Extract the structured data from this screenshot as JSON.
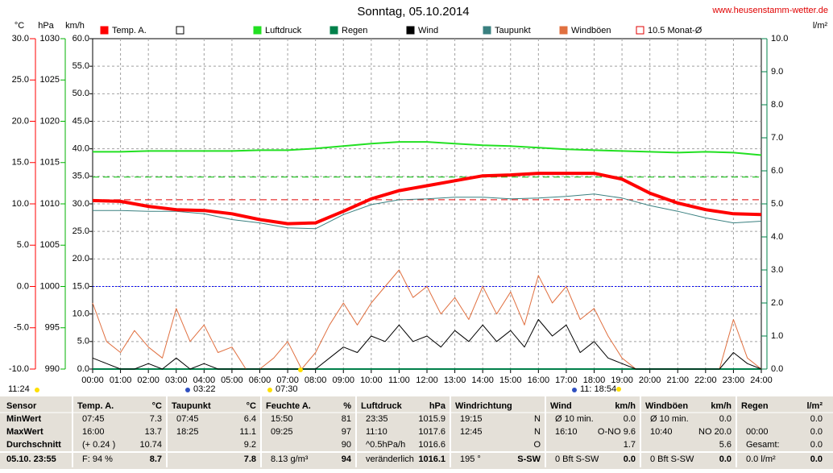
{
  "chart_data": {
    "type": "line",
    "title": "Sonntag, 05.10.2014",
    "source": "www.heusenstamm-wetter.de",
    "xlim": [
      0,
      24
    ],
    "xticks": [
      {
        "value": 0,
        "label": "00:00"
      },
      {
        "value": 1,
        "label": "01:00"
      },
      {
        "value": 2,
        "label": "02:00"
      },
      {
        "value": 3,
        "label": "03:00"
      },
      {
        "value": 4,
        "label": "04:00"
      },
      {
        "value": 5,
        "label": "05:00"
      },
      {
        "value": 6,
        "label": "06:00"
      },
      {
        "value": 7,
        "label": "07:00"
      },
      {
        "value": 8,
        "label": "08:00"
      },
      {
        "value": 9,
        "label": "09:00"
      },
      {
        "value": 10,
        "label": "10:00"
      },
      {
        "value": 11,
        "label": "11:00"
      },
      {
        "value": 12,
        "label": "12:00"
      },
      {
        "value": 13,
        "label": "13:00"
      },
      {
        "value": 14,
        "label": "14:00"
      },
      {
        "value": 15,
        "label": "15:00"
      },
      {
        "value": 16,
        "label": "16:00"
      },
      {
        "value": 17,
        "label": "17:00"
      },
      {
        "value": 18,
        "label": "18:00"
      },
      {
        "value": 19,
        "label": "19:00"
      },
      {
        "value": 20,
        "label": "20:00"
      },
      {
        "value": 21,
        "label": "21:00"
      },
      {
        "value": 22,
        "label": "22:00"
      },
      {
        "value": 23,
        "label": "23:00"
      },
      {
        "value": 24,
        "label": "24:00"
      }
    ],
    "grid": true,
    "axes": {
      "temp": {
        "label": "°C",
        "color": "#ff0000",
        "lim": [
          -10,
          30
        ],
        "ticks": [
          {
            "value": 30,
            "label": "30.0"
          },
          {
            "value": 25,
            "label": "25.0"
          },
          {
            "value": 20,
            "label": "20.0"
          },
          {
            "value": 15,
            "label": "15.0"
          },
          {
            "value": 10,
            "label": "10.0"
          },
          {
            "value": 5,
            "label": "5.0"
          },
          {
            "value": 0,
            "label": "0.0"
          },
          {
            "value": -5,
            "label": "-5.0"
          },
          {
            "value": -10,
            "label": "-10.0"
          }
        ]
      },
      "hpa": {
        "label": "hPa",
        "color": "#00b000",
        "lim": [
          990,
          1030
        ],
        "ticks": [
          1030,
          1025,
          1020,
          1015,
          1010,
          1005,
          1000,
          995,
          990
        ]
      },
      "kmh": {
        "label": "km/h",
        "color": "#000000",
        "lim": [
          0,
          60
        ],
        "ticks": [
          {
            "value": 60,
            "label": "60.0"
          },
          {
            "value": 55,
            "label": "55.0"
          },
          {
            "value": 50,
            "label": "50.0"
          },
          {
            "value": 45,
            "label": "45.0"
          },
          {
            "value": 40,
            "label": "40.0"
          },
          {
            "value": 35,
            "label": "35.0"
          },
          {
            "value": 30,
            "label": "30.0"
          },
          {
            "value": 25,
            "label": "25.0"
          },
          {
            "value": 20,
            "label": "20.0"
          },
          {
            "value": 15,
            "label": "15.0"
          },
          {
            "value": 10,
            "label": "10.0"
          },
          {
            "value": 5,
            "label": "5.0"
          },
          {
            "value": 0,
            "label": "0.0"
          }
        ]
      },
      "rain": {
        "label": "l/m²",
        "color": "#00804a",
        "lim": [
          0,
          10
        ],
        "ticks": [
          {
            "value": 10,
            "label": "10.0"
          },
          {
            "value": 9,
            "label": "9.0"
          },
          {
            "value": 8,
            "label": "8.0"
          },
          {
            "value": 7,
            "label": "7.0"
          },
          {
            "value": 6,
            "label": "6.0"
          },
          {
            "value": 5,
            "label": "5.0"
          },
          {
            "value": 4,
            "label": "4.0"
          },
          {
            "value": 3,
            "label": "3.0"
          },
          {
            "value": 2,
            "label": "2.0"
          },
          {
            "value": 1,
            "label": "1.0"
          },
          {
            "value": 0,
            "label": "0.0"
          }
        ]
      }
    },
    "x": [
      0,
      1,
      2,
      3,
      4,
      5,
      6,
      7,
      8,
      9,
      10,
      11,
      12,
      13,
      14,
      15,
      16,
      17,
      18,
      19,
      20,
      21,
      22,
      23,
      24
    ],
    "series": [
      {
        "name": "Temp. A.",
        "color": "#ff0000",
        "axis": "temp",
        "width": 4,
        "values": [
          10.4,
          10.3,
          9.7,
          9.3,
          9.2,
          8.8,
          8.1,
          7.6,
          7.7,
          9.1,
          10.6,
          11.6,
          12.2,
          12.8,
          13.4,
          13.5,
          13.7,
          13.7,
          13.7,
          13.0,
          11.3,
          10.1,
          9.3,
          8.8,
          8.7
        ]
      },
      {
        "name": "Luftdruck",
        "color": "#22e022",
        "axis": "hpa",
        "width": 2,
        "values": [
          1016.3,
          1016.3,
          1016.4,
          1016.4,
          1016.4,
          1016.4,
          1016.5,
          1016.5,
          1016.7,
          1017.0,
          1017.3,
          1017.5,
          1017.5,
          1017.3,
          1017.1,
          1017.0,
          1016.8,
          1016.6,
          1016.5,
          1016.4,
          1016.3,
          1016.2,
          1016.3,
          1016.2,
          1015.9
        ]
      },
      {
        "name": "Regen",
        "color": "#00804a",
        "axis": "rain",
        "width": 2,
        "values": [
          0,
          0,
          0,
          0,
          0,
          0,
          0,
          0,
          0,
          0,
          0,
          0,
          0,
          0,
          0,
          0,
          0,
          0,
          0,
          0,
          0,
          0,
          0,
          0,
          0
        ]
      },
      {
        "name": "Wind",
        "color": "#000000",
        "axis": "kmh",
        "width": 1,
        "x": [
          0,
          0.5,
          1,
          1.5,
          2,
          2.5,
          3,
          3.5,
          4,
          4.5,
          5,
          5.5,
          6,
          6.5,
          7,
          7.5,
          8,
          8.5,
          9,
          9.5,
          10,
          10.5,
          11,
          11.5,
          12,
          12.5,
          13,
          13.5,
          14,
          14.5,
          15,
          15.5,
          16,
          16.5,
          17,
          17.5,
          18,
          18.5,
          19,
          19.5,
          20,
          20.5,
          21,
          21.5,
          22,
          22.5,
          23,
          23.5,
          24
        ],
        "values": [
          2,
          1,
          0,
          0,
          1,
          0,
          2,
          0,
          1,
          0,
          0,
          0,
          0,
          0,
          0,
          0,
          0,
          2,
          4,
          3,
          6,
          5,
          8,
          5,
          6,
          4,
          7,
          5,
          8,
          5,
          7,
          4,
          9,
          6,
          8,
          3,
          5,
          2,
          1,
          0,
          0,
          0,
          0,
          0,
          0,
          0,
          3,
          1,
          0
        ]
      },
      {
        "name": "Taupunkt",
        "color": "#3a8080",
        "axis": "temp",
        "width": 1,
        "values": [
          9.2,
          9.2,
          9.1,
          9.1,
          8.8,
          8.1,
          7.7,
          7.1,
          7.0,
          8.7,
          9.9,
          10.5,
          10.6,
          10.8,
          10.8,
          10.6,
          10.7,
          10.9,
          11.2,
          10.7,
          9.8,
          9.1,
          8.3,
          7.7,
          7.9
        ]
      },
      {
        "name": "Windböen",
        "color": "#e07040",
        "axis": "kmh",
        "width": 1,
        "x": [
          0,
          0.5,
          1,
          1.5,
          2,
          2.5,
          3,
          3.5,
          4,
          4.5,
          5,
          5.5,
          6,
          6.5,
          7,
          7.5,
          8,
          8.5,
          9,
          9.5,
          10,
          10.5,
          11,
          11.5,
          12,
          12.5,
          13,
          13.5,
          14,
          14.5,
          15,
          15.5,
          16,
          16.5,
          17,
          17.5,
          18,
          18.5,
          19,
          19.5,
          20,
          20.5,
          21,
          21.5,
          22,
          22.5,
          23,
          23.5,
          24
        ],
        "values": [
          12,
          5,
          3,
          7,
          4,
          2,
          11,
          5,
          8,
          3,
          4,
          0,
          0,
          2,
          5,
          0,
          3,
          8,
          12,
          8,
          12,
          15,
          18,
          13,
          15,
          10,
          13,
          9,
          15,
          10,
          14,
          8,
          17,
          12,
          15,
          9,
          11,
          6,
          2,
          0,
          0,
          0,
          0,
          0,
          0,
          0,
          9,
          2,
          0
        ]
      }
    ],
    "reference_lines": [
      {
        "value": 10.5,
        "axis": "temp",
        "color": "#e00000",
        "label": "10.5 Monat-Ø"
      },
      {
        "value": 1013.25,
        "axis": "hpa",
        "color": "#00c000"
      },
      {
        "value": 0,
        "axis": "temp",
        "color": "#0000ff"
      }
    ],
    "annotations": [
      "11:24",
      "03:22",
      "07:30",
      "11: 18:54"
    ]
  },
  "table": {
    "header": [
      {
        "left": "Sensor"
      },
      {
        "left": "Temp. A.",
        "right": "°C"
      },
      {
        "left": "Taupunkt",
        "right": "°C"
      },
      {
        "left": "Feuchte A.",
        "right": "%"
      },
      {
        "left": "Luftdruck",
        "right": "hPa"
      },
      {
        "left": "Windrichtung"
      },
      {
        "left": "Wind",
        "right": "km/h"
      },
      {
        "left": "Windböen",
        "right": "km/h"
      },
      {
        "left": "Regen",
        "right": "l/m²"
      }
    ],
    "rows": [
      {
        "label": "MinWert",
        "cells": [
          {
            "left": "07:45",
            "right": "7.3"
          },
          {
            "left": "07:45",
            "right": "6.4"
          },
          {
            "left": "15:50",
            "right": "81"
          },
          {
            "left": "23:35",
            "right": "1015.9"
          },
          {
            "left": "19:15",
            "right": "N"
          },
          {
            "left": "Ø 10 min.",
            "right": "0.0"
          },
          {
            "left": "Ø 10 min.",
            "right": "0.0"
          },
          {
            "right": "0.0"
          }
        ]
      },
      {
        "label": "MaxWert",
        "cells": [
          {
            "left": "16:00",
            "right": "13.7"
          },
          {
            "left": "18:25",
            "right": "11.1"
          },
          {
            "left": "09:25",
            "right": "97"
          },
          {
            "left": "11:10",
            "right": "1017.6"
          },
          {
            "left": "12:45",
            "right": "N"
          },
          {
            "left": "16:10",
            "right": "O-NO 9.6"
          },
          {
            "left": "10:40",
            "right": "NO 20.0"
          },
          {
            "left": "00:00",
            "right": "0.0"
          }
        ]
      },
      {
        "label": "Durchschnitt",
        "cells": [
          {
            "left": "(+ 0.24 )",
            "right": "10.74"
          },
          {
            "right": "9.2"
          },
          {
            "right": "90"
          },
          {
            "left": "^0.5hPa/h",
            "right": "1016.6"
          },
          {
            "right": "O"
          },
          {
            "right": "1.7"
          },
          {
            "right": "5.6"
          },
          {
            "left": "Gesamt:",
            "right": "0.0"
          }
        ]
      },
      {
        "label": "05.10. 23:55",
        "cells": [
          {
            "left": "F: 94 %",
            "right": "8.7"
          },
          {
            "right": "7.8"
          },
          {
            "left": "8.13 g/m³",
            "right": "94"
          },
          {
            "left": "veränderlich",
            "right": "1016.1"
          },
          {
            "left": "195 °",
            "right": "S-SW"
          },
          {
            "left": "0 Bft S-SW",
            "right": "0.0"
          },
          {
            "left": "0 Bft S-SW",
            "right": "0.0"
          },
          {
            "left": "0.0 l/m²",
            "right": "0.0"
          }
        ]
      }
    ]
  }
}
